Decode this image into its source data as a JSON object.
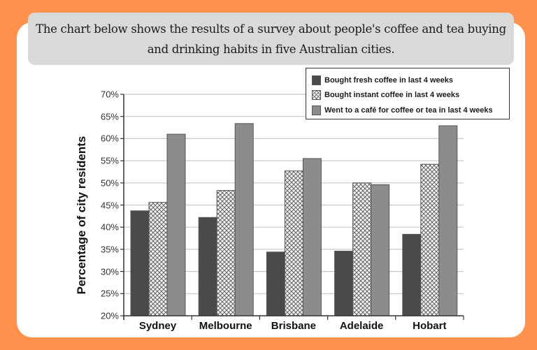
{
  "header": {
    "text": "The chart below shows the results of a survey about people's coffee and tea buying and drinking habits in five Australian cities."
  },
  "colors": {
    "background": "#FF914D",
    "card": "#FFFFFF",
    "header_box": "#D9D9D9",
    "fresh": "#4A4A4A",
    "instant": "#F4F4F4",
    "cafe": "#8C8C8C"
  },
  "chart_data": {
    "type": "bar",
    "title": "",
    "xlabel": "",
    "ylabel": "Percentage of city residents",
    "categories": [
      "Sydney",
      "Melbourne",
      "Brisbane",
      "Adelaide",
      "Hobart"
    ],
    "series": [
      {
        "name": "Bought fresh coffee in last 4 weeks",
        "pattern": "solid-dark",
        "values": [
          43.7,
          42.2,
          34.4,
          34.6,
          38.4
        ]
      },
      {
        "name": "Bought instant coffee in last 4 weeks",
        "pattern": "crosshatch",
        "values": [
          45.6,
          48.3,
          52.7,
          50.0,
          54.2
        ]
      },
      {
        "name": "Went to a café for coffee or tea in last 4 weeks",
        "pattern": "solid-medium-grey",
        "values": [
          61.0,
          63.4,
          55.5,
          49.6,
          62.9
        ]
      }
    ],
    "ylim": [
      20,
      70
    ],
    "yticks": [
      "20%",
      "25%",
      "30%",
      "35%",
      "40%",
      "45%",
      "50%",
      "55%",
      "60%",
      "65%",
      "70%"
    ],
    "grid": true,
    "legend_position": "top-right"
  }
}
